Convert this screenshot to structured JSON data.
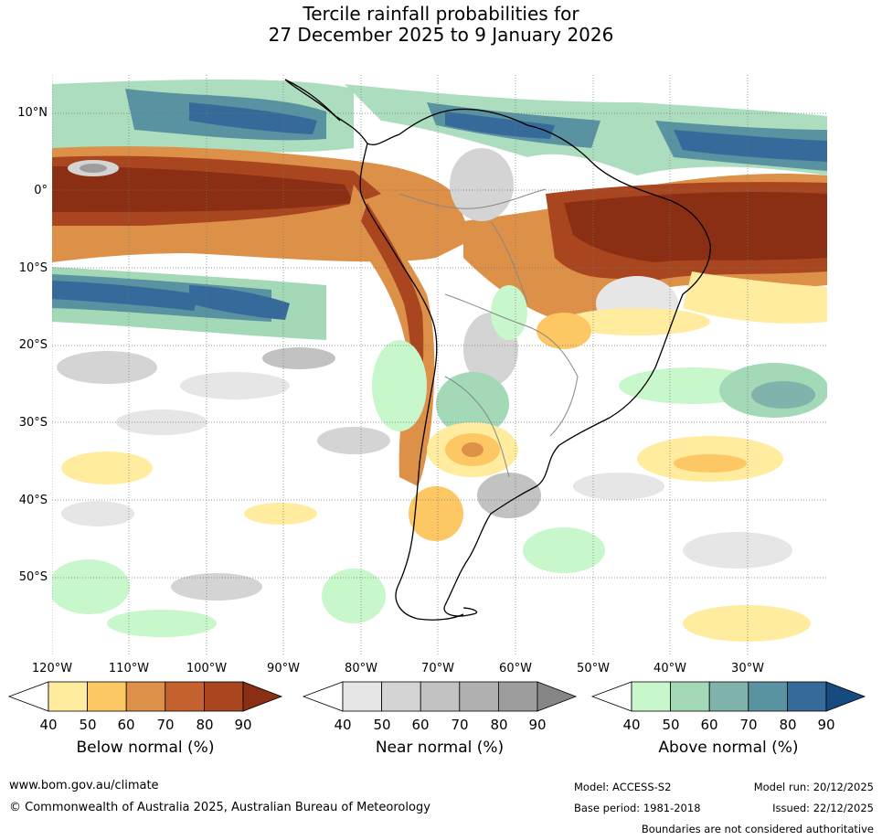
{
  "title": {
    "line1": "Tercile rainfall probabilities for",
    "line2": "27 December 2025 to 9 January 2026"
  },
  "map": {
    "lat_labels": [
      "10°N",
      "0°",
      "10°S",
      "20°S",
      "30°S",
      "40°S",
      "50°S"
    ],
    "lon_labels": [
      "120°W",
      "110°W",
      "100°W",
      "90°W",
      "80°W",
      "70°W",
      "60°W",
      "50°W",
      "40°W",
      "30°W"
    ]
  },
  "legend": {
    "below": {
      "title": "Below normal (%)",
      "ticks": [
        "40",
        "50",
        "60",
        "70",
        "80",
        "90"
      ],
      "colors": [
        "#ffffff",
        "#ffec9f",
        "#fdc863",
        "#dd9048",
        "#c5612f",
        "#a9451f",
        "#8a2f14"
      ]
    },
    "near": {
      "title": "Near normal (%)",
      "ticks": [
        "40",
        "50",
        "60",
        "70",
        "80",
        "90"
      ],
      "colors": [
        "#ffffff",
        "#e6e6e6",
        "#d4d4d4",
        "#c2c2c2",
        "#b0b0b0",
        "#9d9d9d",
        "#868686"
      ]
    },
    "above": {
      "title": "Above normal (%)",
      "ticks": [
        "40",
        "50",
        "60",
        "70",
        "80",
        "90"
      ],
      "colors": [
        "#ffffff",
        "#c8f7cb",
        "#a4d9b8",
        "#7fb3ab",
        "#5992a0",
        "#366a9a",
        "#164b7f"
      ]
    }
  },
  "footer": {
    "url": "www.bom.gov.au/climate",
    "copyright": "© Commonwealth of Australia 2025, Australian Bureau of Meteorology",
    "model": "Model: ACCESS-S2",
    "model_run": "Model run: 20/12/2025",
    "base_period": "Base period: 1981-2018",
    "issued": "Issued: 22/12/2025",
    "disclaimer": "Boundaries are not considered authoritative"
  }
}
